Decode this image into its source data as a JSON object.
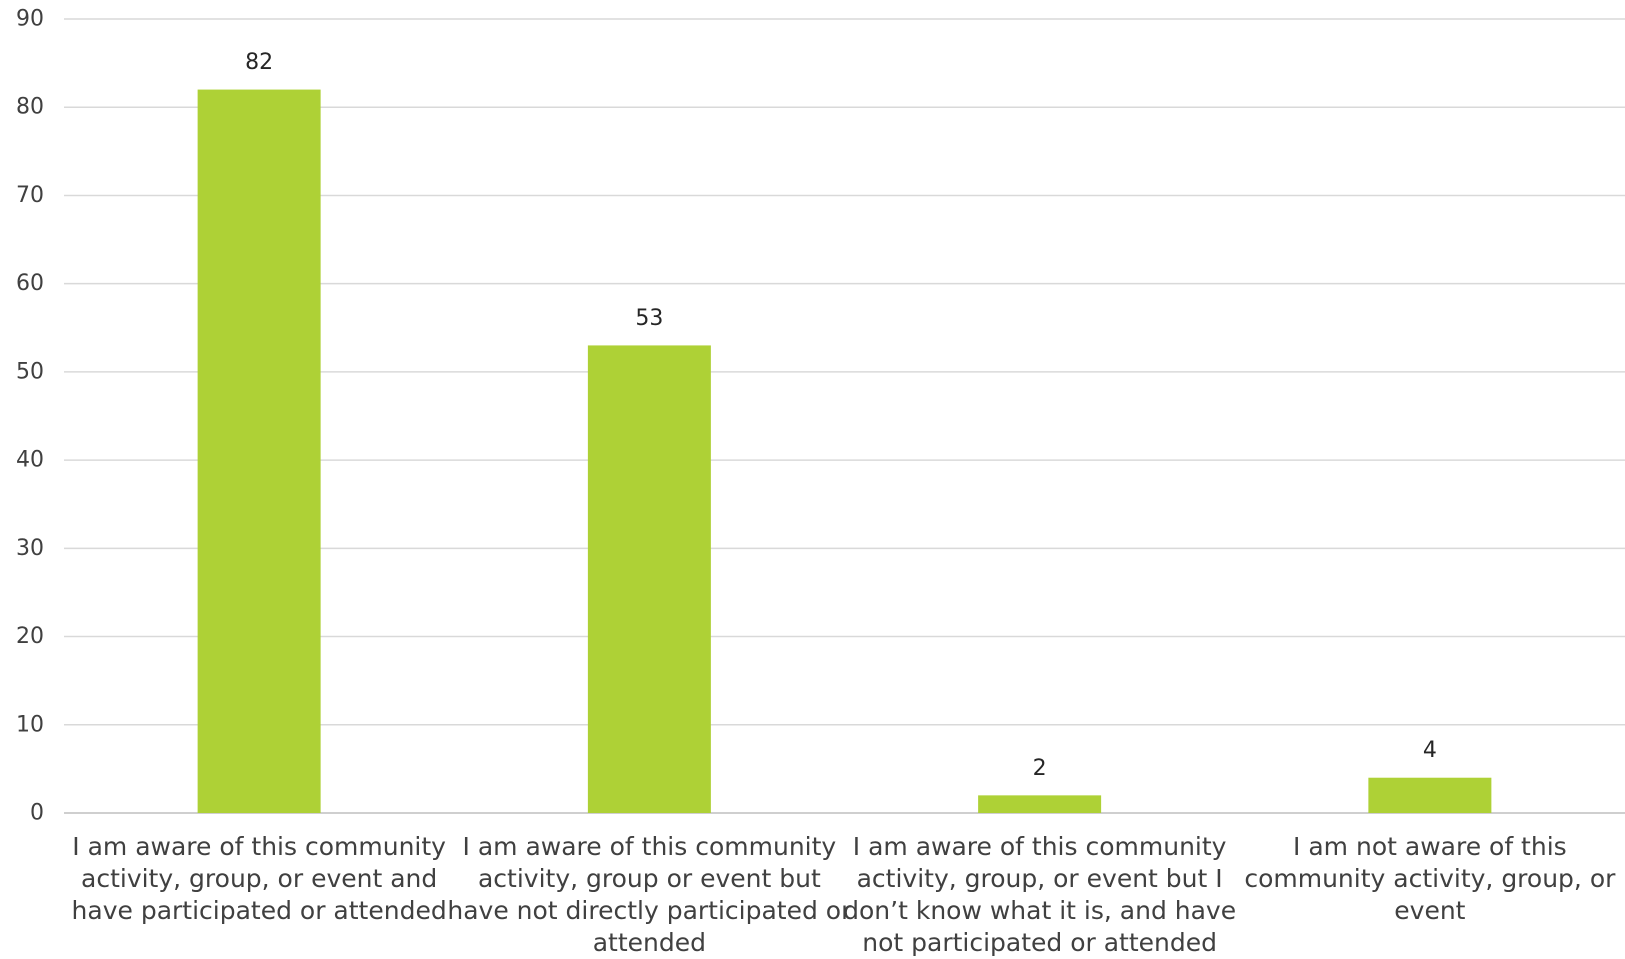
{
  "chart_data": {
    "type": "bar",
    "title": "",
    "xlabel": "",
    "ylabel": "",
    "ylim": [
      0,
      90
    ],
    "yticks": [
      0,
      10,
      20,
      30,
      40,
      50,
      60,
      70,
      80,
      90
    ],
    "grid": true,
    "legend": "none",
    "bar_color": "#aed136",
    "categories": [
      "I am aware of this community activity, group, or event and have participated or attended",
      "I am aware of this community activity, group or event but have not directly participated or attended",
      "I am aware of this community activity, group, or event but I don’t know what it is, and have not participated or attended",
      "I am not aware of this community activity, group, or event"
    ],
    "category_lines": [
      [
        "I am aware of this community",
        "activity, group, or event and",
        "have participated or attended"
      ],
      [
        "I am aware of this community",
        "activity, group or event but",
        "have not directly participated or",
        "attended"
      ],
      [
        "I am aware of this community",
        "activity, group, or event but I",
        "don’t know what it is, and have",
        "not participated or attended"
      ],
      [
        "I am not aware of this",
        "community activity, group, or",
        "event"
      ]
    ],
    "values": [
      82,
      53,
      2,
      4
    ],
    "data_labels": [
      "82",
      "53",
      "2",
      "4"
    ]
  }
}
